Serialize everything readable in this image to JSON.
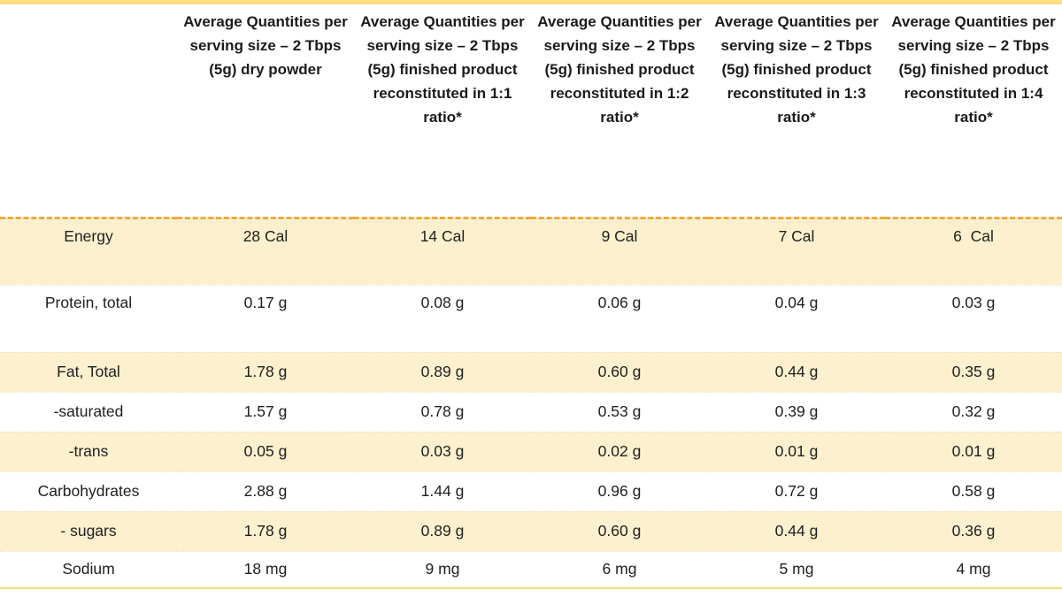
{
  "colors": {
    "page_top_rule": "#FBDD84",
    "band_row_background": "#FCF0CE",
    "header_separator_dashed": "#F2AA3C",
    "bottom_rule": "#F7DC6F",
    "text": "#1d1d1d"
  },
  "chart_data": {
    "type": "table",
    "title": "",
    "columns": [
      "",
      "Average Quantities per serving size – 2 Tbps (5g) dry powder",
      "Average Quantities per serving size – 2 Tbps (5g) finished product reconstituted in 1:1 ratio*",
      "Average Quantities per serving size – 2 Tbps (5g) finished product reconstituted in 1:2 ratio*",
      "Average Quantities per serving size – 2 Tbps (5g) finished product reconstituted in 1:3 ratio*",
      "Average Quantities per serving size – 2 Tbps (5g) finished product reconstituted in 1:4 ratio*"
    ],
    "rows": [
      {
        "label": "Energy",
        "values": [
          "28 Cal",
          "14 Cal",
          "9 Cal",
          "7 Cal",
          "6  Cal"
        ]
      },
      {
        "label": "Protein, total",
        "values": [
          "0.17 g",
          "0.08 g",
          "0.06 g",
          "0.04 g",
          "0.03 g"
        ]
      },
      {
        "label": "Fat, Total",
        "values": [
          "1.78 g",
          "0.89 g",
          "0.60 g",
          "0.44 g",
          "0.35 g"
        ]
      },
      {
        "label": "-saturated",
        "values": [
          "1.57 g",
          "0.78 g",
          "0.53 g",
          "0.39 g",
          "0.32 g"
        ]
      },
      {
        "label": "-trans",
        "values": [
          "0.05 g",
          "0.03 g",
          "0.02 g",
          "0.01 g",
          "0.01 g"
        ]
      },
      {
        "label": "Carbohydrates",
        "values": [
          "2.88 g",
          "1.44 g",
          "0.96 g",
          "0.72 g",
          "0.58 g"
        ]
      },
      {
        "label": "- sugars",
        "values": [
          "1.78 g",
          "0.89 g",
          "0.60 g",
          "0.44 g",
          "0.36 g"
        ]
      },
      {
        "label": "Sodium",
        "values": [
          "18 mg",
          "9 mg",
          "6 mg",
          "5 mg",
          "4 mg"
        ]
      }
    ]
  }
}
